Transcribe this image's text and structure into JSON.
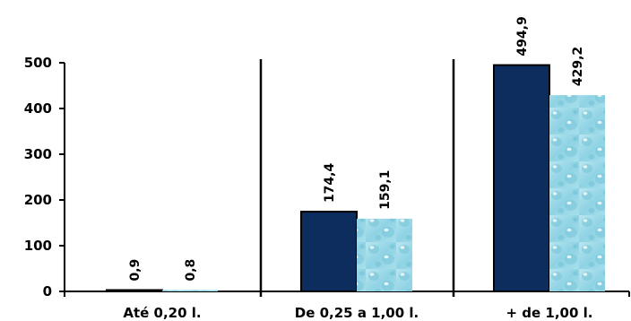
{
  "chart_data": {
    "type": "bar",
    "categories": [
      "Até 0,20 l.",
      "De 0,25 a 1,00 l.",
      "+ de 1,00 l."
    ],
    "series": [
      {
        "values": [
          0.9,
          174.4,
          494.9
        ],
        "labels": [
          "0,9",
          "174,4",
          "494,9"
        ],
        "color": "#0d2d5e",
        "fill": "solid"
      },
      {
        "values": [
          0.8,
          159.1,
          429.2
        ],
        "labels": [
          "0,8",
          "159,1",
          "429,2"
        ],
        "color": "#8fd3e4",
        "fill": "water-drops"
      }
    ],
    "yticks": [
      "0",
      "100",
      "200",
      "300",
      "400",
      "500"
    ],
    "ylim": [
      0,
      500
    ],
    "grid": false,
    "legend": "none",
    "category_separators": true
  }
}
